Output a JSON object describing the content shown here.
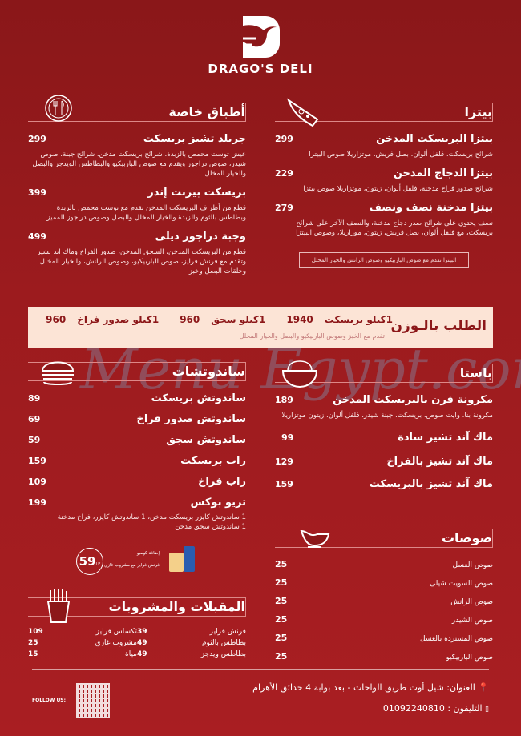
{
  "brand": {
    "name": "DRAGO'S DELI"
  },
  "pizza": {
    "title": "بيتزا",
    "icon": "pizza-icon",
    "items": [
      {
        "name": "بيتزا البريسكت المدخن",
        "price": "299",
        "desc": "شرائح بريسكت، فلفل ألوان، بصل فريش، موتزاريلا صوص البيتزا"
      },
      {
        "name": "بيتزا الدجاج المدخن",
        "price": "229",
        "desc": "شرائح صدور فراخ مدخنة، فلفل ألوان، زيتون، موتزاريلا صوص بيتزا"
      },
      {
        "name": "بيتزا مدخنة نصف ونصف",
        "price": "279",
        "desc": "نصف يحتوي على شرائح صدر دجاج مدخنة، والنصف الآخر على شرائح بريسكت، مع فلفل ألوان، بصل فريش، زيتون، موزاريلا، وصوص البيتزا"
      }
    ],
    "note": "البيتزا تقدم مع صوص الباربيكيو وصوص الرانش والخيار المخلل"
  },
  "special": {
    "title": "أطباق خاصة",
    "icon": "fork-knife-icon",
    "items": [
      {
        "name": "جريلد تشيز بريسكت",
        "price": "299",
        "desc": "عيش توست محمص بالزبدة، شرائح بريسكت مدخن، شرائح جبنة، صوص شيدر، صوص دراجوز ويقدم مع صوص الباربيكيو والبطاطس الويدجز والبصل والخيار المخلل"
      },
      {
        "name": "بريسكت بيرنت إندز",
        "price": "399",
        "desc": "قطع من أطراف البريسكت المدخن تقدم مع توست محمص بالزبدة وبطاطس بالثوم والزبدة والخيار المخلل والبصل وصوص دراجوز المميز"
      },
      {
        "name": "وجبة دراجوز ديلى",
        "price": "499",
        "desc": "قطع من البريسكت المدخن، السجق المدخن، صدور الفراخ وماك اند تشيز وتقدم مع فرنش فرايز، صوص الباربيكيو، وصوص الرانش، والخيار المخلل وحلقات البصل وخبز"
      }
    ]
  },
  "by_weight": {
    "title": "الطلب بالـوزن",
    "items": [
      {
        "name": "1كيلو بريسكت",
        "price": "1940"
      },
      {
        "name": "1كيلو سجق",
        "price": "960"
      },
      {
        "name": "1كيلو صدور فراخ",
        "price": "960"
      }
    ],
    "sub": "تقدم مع الخبز وصوص الباربيكيو والبصل والخيار المخلل"
  },
  "pasta": {
    "title": "باستا",
    "icon": "pasta-bowl-icon",
    "items": [
      {
        "name": "مكرونة فرن بالبريسكت المدخن",
        "price": "189",
        "desc": "مكرونة بنا، وايت صوص، بريسكت، جبنة شيدر، فلفل ألوان، زيتون موتزاريلا"
      },
      {
        "name": "ماك آند تشيز سادة",
        "price": "99"
      },
      {
        "name": "ماك آند تشيز بالفراخ",
        "price": "129"
      },
      {
        "name": "ماك آند تشيز بالبريسكت",
        "price": "159"
      }
    ]
  },
  "sandwiches": {
    "title": "ساندوتشات",
    "icon": "burger-icon",
    "items": [
      {
        "name": "ساندوتش بريسكت",
        "price": "89"
      },
      {
        "name": "ساندوتش صدور فراخ",
        "price": "69"
      },
      {
        "name": "ساندوتش سجق",
        "price": "59"
      },
      {
        "name": "راب بريسكت",
        "price": "159"
      },
      {
        "name": "راب فراخ",
        "price": "109"
      },
      {
        "name": "تريو بوكس",
        "price": "199"
      }
    ],
    "trio_desc": [
      "1 ساندوتش كايزر بريسكت مدخن، 1 ساندوتش كايزر، فراخ مدخنة",
      "1 ساندوتش سجق مدخن"
    ],
    "combo": {
      "title": "إضافة كومبو",
      "desc": "فرنش فرايز مع مشروب غازي",
      "price": "59",
      "currency": "LE"
    }
  },
  "sauces": {
    "title": "صوصات",
    "icon": "sauce-boat-icon",
    "items": [
      {
        "name": "صوص العسل",
        "price": "25"
      },
      {
        "name": "صوص السويت شيلى",
        "price": "25"
      },
      {
        "name": "صوص الرانش",
        "price": "25"
      },
      {
        "name": "صوص الشيدر",
        "price": "25"
      },
      {
        "name": "صوص المستردة بالعسل",
        "price": "25"
      },
      {
        "name": "صوص الباربيكيو",
        "price": "25"
      }
    ]
  },
  "appetizers": {
    "title": "المقبلات والمشروبات",
    "icon": "fries-icon",
    "items": [
      {
        "name": "فرنش فرايز",
        "price": "39"
      },
      {
        "name": "تكساس فرايز",
        "price": "109"
      },
      {
        "name": "بطاطس بالثوم",
        "price": "49"
      },
      {
        "name": "مشروب غازي",
        "price": "25"
      },
      {
        "name": "بطاطس ويدجز",
        "price": "49"
      },
      {
        "name": "مياة",
        "price": "15"
      }
    ]
  },
  "footer": {
    "address": "العنوان: شيل أوت طريق الواحات - بعد بوابة 4 حدائق الأهرام",
    "phone": "التليفون : 01092240810",
    "follow": "FOLLOW US:"
  },
  "watermark": "Menu Egypt.com",
  "colors": {
    "background": "#a01c20",
    "band": "#fce4d6",
    "band_text": "#8c1719"
  }
}
